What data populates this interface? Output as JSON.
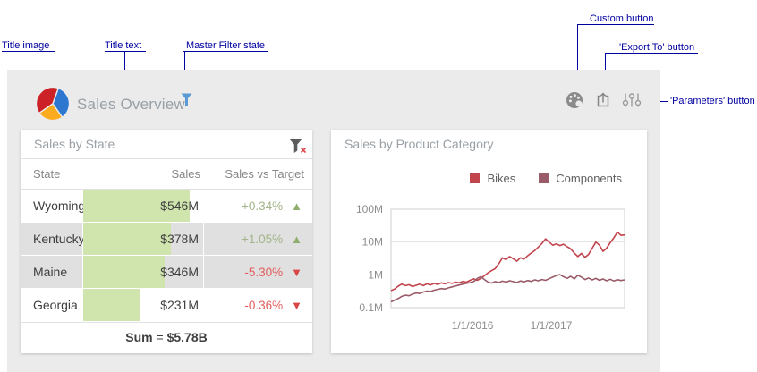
{
  "annotations": {
    "color": "#0000a0",
    "title_image": "Title image",
    "title_text": "Title text",
    "master_filter": "Master Filter state",
    "custom_button": "Custom button",
    "export_button": "'Export To' button",
    "parameters_button": "'Parameters' button"
  },
  "title_bar": {
    "title": "Sales Overview",
    "title_image_colors": {
      "red": "#cc2127",
      "blue": "#2e77d0",
      "orange": "#fbab1d"
    },
    "master_filter_icon_color": "#5b9bd5",
    "buttons": [
      {
        "name": "custom",
        "icon": "palette-icon"
      },
      {
        "name": "export",
        "icon": "export-icon"
      },
      {
        "name": "parameters",
        "icon": "parameters-icon"
      }
    ]
  },
  "grid_panel": {
    "caption": "Sales by State",
    "clear_filter_icon": "funnel-clear-icon",
    "columns": [
      "State",
      "Sales",
      "Sales vs Target"
    ],
    "rows": [
      {
        "state": "Wyoming",
        "sales": "$546M",
        "bar_pct": 89,
        "delta": "+0.34%",
        "direction": "up",
        "shaded": false
      },
      {
        "state": "Kentucky",
        "sales": "$378M",
        "bar_pct": 73,
        "delta": "+1.05%",
        "direction": "up",
        "shaded": true
      },
      {
        "state": "Maine",
        "sales": "$346M",
        "bar_pct": 68,
        "delta": "-5.30%",
        "direction": "down",
        "shaded": true
      },
      {
        "state": "Georgia",
        "sales": "$231M",
        "bar_pct": 47,
        "delta": "-0.36%",
        "direction": "down",
        "shaded": false
      }
    ],
    "summary": {
      "label": "Sum",
      "equals": "=",
      "value": "$5.78B"
    },
    "colors": {
      "bar": "#cfe5ad",
      "shaded_row": "#e0e0e0",
      "up_text": "#a2b489",
      "up_arrow": "#8fae6e",
      "down_text": "#e25c5c",
      "down_arrow": "#da4545"
    }
  },
  "chart_panel": {
    "caption": "Sales by Product Category"
  },
  "chart_data": {
    "type": "line",
    "title": "Sales by Product Category",
    "y_scale": "log",
    "y_unit": "millions",
    "ylim": [
      0.1,
      100
    ],
    "grid": true,
    "legend_position": "top-right",
    "y_ticks": [
      {
        "label": "100M",
        "value": 100
      },
      {
        "label": "10M",
        "value": 10
      },
      {
        "label": "1M",
        "value": 1
      },
      {
        "label": "0.1M",
        "value": 0.1
      }
    ],
    "x_ticks": [
      {
        "label": "1/1/2016",
        "pos": 0.349
      },
      {
        "label": "1/1/2017",
        "pos": 0.686
      }
    ],
    "series": [
      {
        "name": "Bikes",
        "color": "#c2444c",
        "values": [
          0.33,
          0.37,
          0.45,
          0.52,
          0.47,
          0.5,
          0.44,
          0.48,
          0.52,
          0.47,
          0.53,
          0.49,
          0.55,
          0.51,
          0.57,
          0.53,
          0.58,
          0.55,
          0.6,
          0.57,
          0.63,
          0.6,
          0.68,
          0.75,
          0.68,
          0.78,
          0.95,
          1.15,
          1.35,
          1.55,
          2.2,
          3.3,
          2.9,
          3.6,
          3.1,
          2.6,
          3.3,
          3.0,
          3.8,
          4.6,
          5.5,
          7.0,
          9.0,
          12.5,
          10.0,
          8.0,
          8.8,
          7.8,
          8.6,
          7.2,
          6.2,
          4.6,
          3.6,
          4.5,
          3.4,
          4.2,
          6.5,
          10.0,
          8.0,
          5.2,
          6.5,
          9.5,
          13.5,
          20.0,
          16.0,
          16.5
        ]
      },
      {
        "name": "Components",
        "color": "#9a5b68",
        "values": [
          0.15,
          0.17,
          0.19,
          0.22,
          0.24,
          0.23,
          0.26,
          0.28,
          0.27,
          0.3,
          0.32,
          0.31,
          0.34,
          0.36,
          0.38,
          0.37,
          0.4,
          0.43,
          0.46,
          0.49,
          0.52,
          0.55,
          0.58,
          0.62,
          0.78,
          0.88,
          0.72,
          0.6,
          0.56,
          0.62,
          0.58,
          0.64,
          0.6,
          0.66,
          0.62,
          0.58,
          0.65,
          0.61,
          0.67,
          0.63,
          0.7,
          0.66,
          0.72,
          0.68,
          0.76,
          0.85,
          0.95,
          1.02,
          0.88,
          0.78,
          0.9,
          0.75,
          0.98,
          0.85,
          0.72,
          0.8,
          0.7,
          0.78,
          0.68,
          0.75,
          0.66,
          0.73,
          0.65,
          0.71,
          0.67,
          0.7
        ]
      }
    ]
  }
}
